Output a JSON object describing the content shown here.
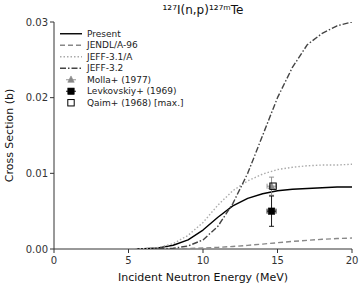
{
  "chart_data": {
    "type": "line",
    "title": "¹²⁷I(n,p)¹²⁷ᵐTe",
    "x_label": "Incident Neutron Energy (MeV)",
    "y_label": "Cross Section (b)",
    "xlim": [
      0,
      20
    ],
    "ylim": [
      0.0,
      0.03
    ],
    "xticks": [
      0,
      5,
      10,
      15,
      20
    ],
    "yticks": [
      {
        "value": 0,
        "label": "0.00"
      },
      0.01,
      0.02,
      0.03
    ],
    "grid": false,
    "legend": "upper left",
    "series": [
      {
        "name": "Present",
        "type": "line",
        "color": "#000000",
        "line_style": "solid",
        "x": [
          5.5,
          6.0,
          7.0,
          8.0,
          9.0,
          10.0,
          11.0,
          12.0,
          13.0,
          14.0,
          15.0,
          16.0,
          17.0,
          18.0,
          19.0,
          20.0
        ],
        "values": [
          1e-06,
          3e-05,
          0.00015,
          0.0005,
          0.0012,
          0.0025,
          0.0042,
          0.0057,
          0.0067,
          0.0073,
          0.0077,
          0.0079,
          0.008,
          0.0081,
          0.0082,
          0.0082
        ]
      },
      {
        "name": "JENDL/A-96",
        "type": "line",
        "color": "#888888",
        "line_style": "dashed",
        "x": [
          7.0,
          8.0,
          9.0,
          10.0,
          11.0,
          12.0,
          13.0,
          14.0,
          15.0,
          16.0,
          17.0,
          18.0,
          19.0,
          20.0
        ],
        "values": [
          5e-06,
          2e-05,
          6e-05,
          0.00013,
          0.00022,
          0.00033,
          0.00048,
          0.00065,
          0.00083,
          0.001,
          0.00115,
          0.00128,
          0.00138,
          0.00145
        ]
      },
      {
        "name": "JEFF-3.1/A",
        "type": "line",
        "color": "#aaaaaa",
        "line_style": "dotted",
        "x": [
          5.5,
          6.0,
          7.0,
          8.0,
          9.0,
          10.0,
          11.0,
          12.0,
          13.0,
          14.0,
          15.0,
          16.0,
          17.0,
          18.0,
          19.0,
          20.0
        ],
        "values": [
          1e-06,
          4e-05,
          0.0002,
          0.0007,
          0.0018,
          0.0035,
          0.0058,
          0.0077,
          0.009,
          0.0099,
          0.0105,
          0.0108,
          0.011,
          0.0111,
          0.0111,
          0.0112
        ]
      },
      {
        "name": "JEFF-3.2",
        "type": "line",
        "color": "#444444",
        "line_style": "dashdot",
        "x": [
          7.0,
          8.0,
          9.0,
          10.0,
          11.0,
          12.0,
          13.0,
          14.0,
          15.0,
          16.0,
          17.0,
          18.0,
          19.0,
          20.0
        ],
        "values": [
          3e-05,
          0.0001,
          0.0004,
          0.0012,
          0.003,
          0.006,
          0.01,
          0.015,
          0.02,
          0.024,
          0.027,
          0.0285,
          0.0295,
          0.03
        ]
      },
      {
        "name": "Molla+ (1977)",
        "type": "scatter",
        "color": "#888888",
        "marker": "triangle",
        "x": [
          14.6
        ],
        "values": [
          0.0083
        ],
        "xerr": [
          0.3
        ],
        "yerr": [
          0.0012
        ]
      },
      {
        "name": "Levkovskiy+ (1969)",
        "type": "scatter",
        "color": "#000000",
        "marker": "square",
        "x": [
          14.6
        ],
        "values": [
          0.005
        ],
        "xerr": [
          0.3
        ],
        "yerr": [
          0.002
        ]
      },
      {
        "name": "Qaim+ (1968) [max.]",
        "type": "scatter",
        "color": "#000000",
        "marker": "open-square",
        "x": [
          14.7
        ],
        "values": [
          0.0083
        ]
      }
    ]
  }
}
